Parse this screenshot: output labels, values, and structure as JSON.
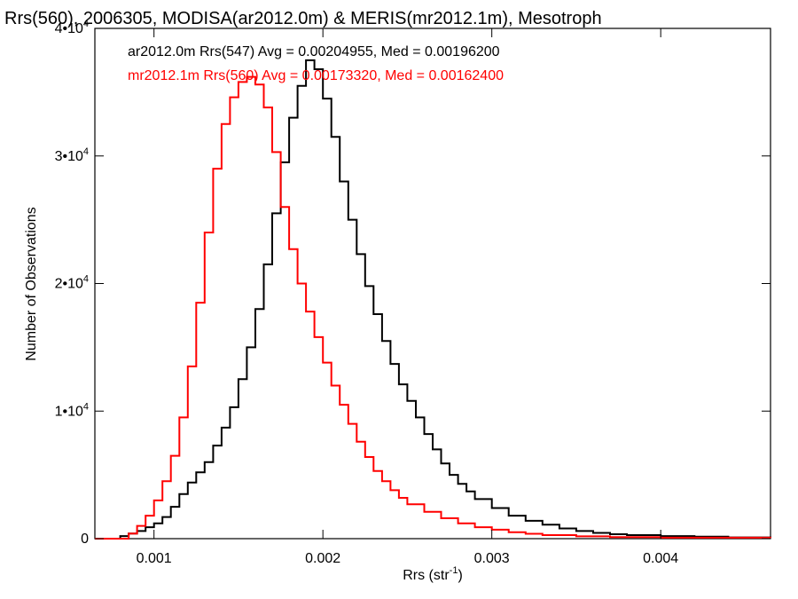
{
  "chart_data": {
    "type": "line",
    "title": "Rrs(560), 2006305, MODISA(ar2012.0m) & MERIS(mr2012.1m), Mesotroph",
    "xlabel": "Rrs (str",
    "xlabel_sup": "-1",
    "xlabel_suffix": ")",
    "ylabel": "Number of Observations",
    "xlim": [
      0.00065,
      0.00465
    ],
    "ylim": [
      0,
      40000
    ],
    "xticks": [
      {
        "value": 0.001,
        "label": "0.001"
      },
      {
        "value": 0.002,
        "label": "0.002"
      },
      {
        "value": 0.003,
        "label": "0.003"
      },
      {
        "value": 0.004,
        "label": "0.004"
      }
    ],
    "yticks": [
      {
        "value": 0,
        "mant": "0",
        "exp": ""
      },
      {
        "value": 10000,
        "mant": "1•10",
        "exp": "4"
      },
      {
        "value": 20000,
        "mant": "2•10",
        "exp": "4"
      },
      {
        "value": 30000,
        "mant": "3•10",
        "exp": "4"
      },
      {
        "value": 40000,
        "mant": "4•10",
        "exp": "4"
      }
    ],
    "grid": false,
    "step": true,
    "series": [
      {
        "name": "ar2012.0m Rrs(547)",
        "color": "#000000",
        "legend": "ar2012.0m Rrs(547) Avg = 0.00204955, Med = 0.00196200",
        "points": [
          [
            0.00065,
            0
          ],
          [
            0.00078,
            0
          ],
          [
            0.0008,
            200
          ],
          [
            0.00085,
            400
          ],
          [
            0.0009,
            600
          ],
          [
            0.00095,
            900
          ],
          [
            0.001,
            1200
          ],
          [
            0.00105,
            1700
          ],
          [
            0.0011,
            2500
          ],
          [
            0.00115,
            3500
          ],
          [
            0.0012,
            4400
          ],
          [
            0.00125,
            5200
          ],
          [
            0.0013,
            6000
          ],
          [
            0.00135,
            7300
          ],
          [
            0.0014,
            8700
          ],
          [
            0.00145,
            10300
          ],
          [
            0.0015,
            12500
          ],
          [
            0.00155,
            15000
          ],
          [
            0.0016,
            18000
          ],
          [
            0.00165,
            21500
          ],
          [
            0.0017,
            25500
          ],
          [
            0.00175,
            29500
          ],
          [
            0.0018,
            33000
          ],
          [
            0.00185,
            35500
          ],
          [
            0.0019,
            37500
          ],
          [
            0.00195,
            36800
          ],
          [
            0.002,
            34500
          ],
          [
            0.00205,
            31500
          ],
          [
            0.0021,
            28000
          ],
          [
            0.00215,
            25000
          ],
          [
            0.0022,
            22300
          ],
          [
            0.00225,
            19800
          ],
          [
            0.0023,
            17600
          ],
          [
            0.00235,
            15500
          ],
          [
            0.0024,
            13700
          ],
          [
            0.00245,
            12100
          ],
          [
            0.0025,
            10800
          ],
          [
            0.00255,
            9500
          ],
          [
            0.0026,
            8200
          ],
          [
            0.00265,
            7000
          ],
          [
            0.0027,
            5900
          ],
          [
            0.00275,
            5000
          ],
          [
            0.0028,
            4300
          ],
          [
            0.00285,
            3700
          ],
          [
            0.0029,
            3100
          ],
          [
            0.003,
            2400
          ],
          [
            0.0031,
            1800
          ],
          [
            0.0032,
            1400
          ],
          [
            0.0033,
            1100
          ],
          [
            0.0034,
            800
          ],
          [
            0.0035,
            600
          ],
          [
            0.0036,
            450
          ],
          [
            0.0037,
            350
          ],
          [
            0.0038,
            280
          ],
          [
            0.004,
            200
          ],
          [
            0.0042,
            150
          ],
          [
            0.0044,
            100
          ],
          [
            0.00465,
            80
          ]
        ]
      },
      {
        "name": "mr2012.1m Rrs(560)",
        "color": "#ff0000",
        "legend": "mr2012.1m Rrs(560) Avg = 0.00173320, Med = 0.00162400",
        "points": [
          [
            0.00065,
            0
          ],
          [
            0.0008,
            0
          ],
          [
            0.00085,
            400
          ],
          [
            0.0009,
            1000
          ],
          [
            0.00095,
            1800
          ],
          [
            0.001,
            3000
          ],
          [
            0.00105,
            4500
          ],
          [
            0.0011,
            6500
          ],
          [
            0.00115,
            9500
          ],
          [
            0.0012,
            13500
          ],
          [
            0.00125,
            18500
          ],
          [
            0.0013,
            24000
          ],
          [
            0.00135,
            29000
          ],
          [
            0.0014,
            32500
          ],
          [
            0.00145,
            34600
          ],
          [
            0.0015,
            35800
          ],
          [
            0.00155,
            36200
          ],
          [
            0.0016,
            35600
          ],
          [
            0.00165,
            33800
          ],
          [
            0.0017,
            30300
          ],
          [
            0.00175,
            26000
          ],
          [
            0.0018,
            22700
          ],
          [
            0.00185,
            20000
          ],
          [
            0.0019,
            17800
          ],
          [
            0.00195,
            15800
          ],
          [
            0.002,
            13800
          ],
          [
            0.00205,
            12000
          ],
          [
            0.0021,
            10500
          ],
          [
            0.00215,
            9000
          ],
          [
            0.0022,
            7600
          ],
          [
            0.00225,
            6400
          ],
          [
            0.0023,
            5300
          ],
          [
            0.00235,
            4500
          ],
          [
            0.0024,
            3800
          ],
          [
            0.00245,
            3200
          ],
          [
            0.0025,
            2700
          ],
          [
            0.0026,
            2100
          ],
          [
            0.0027,
            1600
          ],
          [
            0.0028,
            1200
          ],
          [
            0.0029,
            900
          ],
          [
            0.003,
            700
          ],
          [
            0.0031,
            500
          ],
          [
            0.0032,
            380
          ],
          [
            0.0033,
            280
          ],
          [
            0.0035,
            180
          ],
          [
            0.0037,
            120
          ],
          [
            0.004,
            80
          ],
          [
            0.00465,
            50
          ]
        ]
      }
    ]
  }
}
